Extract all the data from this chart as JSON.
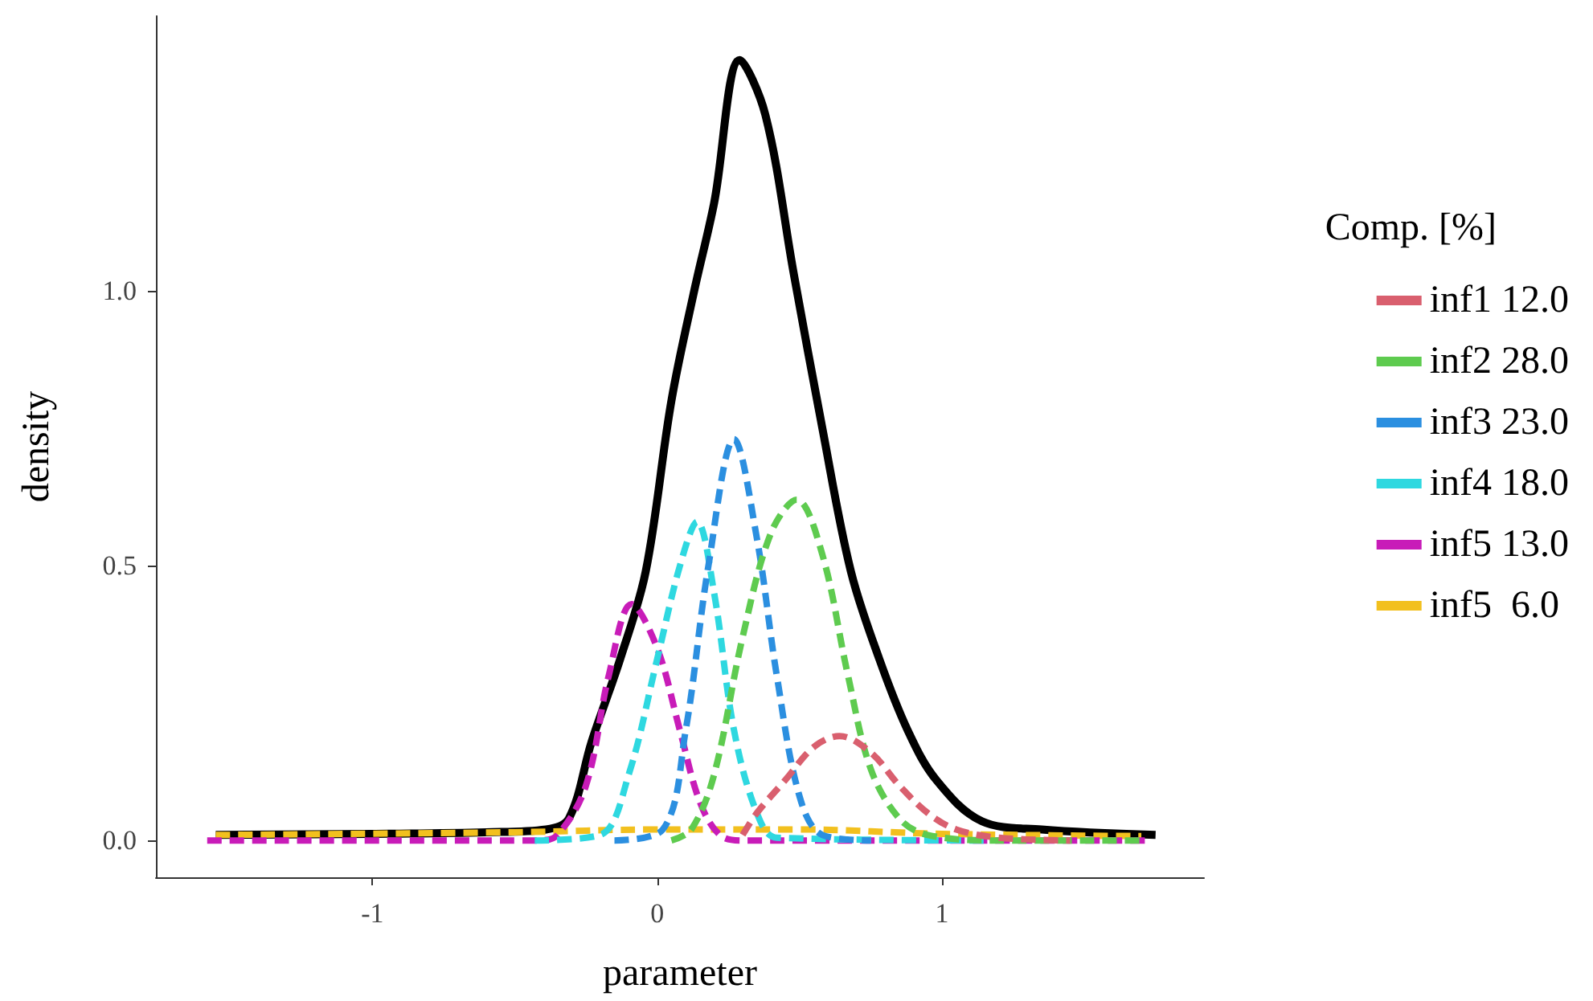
{
  "chart_data": {
    "type": "line",
    "xlabel": "parameter",
    "ylabel": "density",
    "legend_title": "Comp. [%]",
    "xlim": [
      -1.76,
      1.92
    ],
    "ylim": [
      -0.067,
      1.5
    ],
    "xticks": [
      -1,
      0,
      1
    ],
    "yticks": [
      {
        "value": 0,
        "label": "0.0"
      },
      0.5,
      {
        "value": 1,
        "label": "1.0"
      }
    ],
    "grid": false,
    "legend": "right",
    "marker": "none",
    "series": [
      {
        "color": "#000000",
        "line_style": "solid",
        "x": [
          -1.55,
          -1.0,
          -0.6,
          -0.39,
          -0.31,
          -0.23,
          -0.13,
          -0.04,
          0.05,
          0.13,
          0.2,
          0.29,
          0.38,
          0.48,
          0.58,
          0.68,
          0.78,
          0.88,
          0.98,
          1.14,
          1.35,
          1.75
        ],
        "values": [
          0.01,
          0.012,
          0.015,
          0.02,
          0.04,
          0.18,
          0.33,
          0.49,
          0.8,
          1.0,
          1.16,
          1.42,
          1.32,
          1.03,
          0.75,
          0.49,
          0.33,
          0.2,
          0.11,
          0.035,
          0.02,
          0.01
        ]
      },
      {
        "name": "inf1 12.0",
        "color": "#d95f6e",
        "line_style": "dashed",
        "x": [
          0.3,
          0.35,
          0.45,
          0.55,
          0.64,
          0.75,
          0.85,
          0.95,
          1.05,
          1.2,
          1.45
        ],
        "values": [
          0.01,
          0.05,
          0.11,
          0.17,
          0.19,
          0.16,
          0.1,
          0.05,
          0.02,
          0.005,
          0
        ]
      },
      {
        "name": "inf2 28.0",
        "color": "#5ecb4f",
        "line_style": "dashed",
        "x": [
          0.05,
          0.12,
          0.2,
          0.3,
          0.4,
          0.49,
          0.58,
          0.67,
          0.75,
          0.85,
          0.95,
          1.2,
          1.7
        ],
        "values": [
          0,
          0.02,
          0.12,
          0.37,
          0.56,
          0.62,
          0.52,
          0.3,
          0.13,
          0.04,
          0.01,
          0,
          0
        ]
      },
      {
        "name": "inf3 23.0",
        "color": "#2b8fe0",
        "line_style": "dashed",
        "x": [
          -0.15,
          0.02,
          0.1,
          0.18,
          0.27,
          0.35,
          0.42,
          0.5,
          0.58,
          0.75
        ],
        "values": [
          0,
          0.02,
          0.2,
          0.5,
          0.73,
          0.55,
          0.3,
          0.08,
          0.01,
          0
        ]
      },
      {
        "name": "inf4 18.0",
        "color": "#2ed8e0",
        "line_style": "dashed",
        "x": [
          -0.43,
          -0.2,
          -0.1,
          0.0,
          0.08,
          0.14,
          0.2,
          0.27,
          0.35,
          0.42,
          1.15
        ],
        "values": [
          0,
          0.01,
          0.12,
          0.33,
          0.5,
          0.58,
          0.45,
          0.2,
          0.05,
          0.005,
          0
        ]
      },
      {
        "name": "inf5 13.0",
        "color": "#c81cb8",
        "line_style": "dashed",
        "x": [
          -1.58,
          -0.42,
          -0.35,
          -0.25,
          -0.17,
          -0.09,
          0.0,
          0.08,
          0.15,
          0.22,
          0.3,
          1.72
        ],
        "values": [
          0,
          0,
          0.01,
          0.1,
          0.3,
          0.43,
          0.35,
          0.2,
          0.07,
          0.01,
          0,
          0
        ]
      },
      {
        "name": "inf5  6.0",
        "color": "#f2c01e",
        "line_style": "dashed",
        "x": [
          -1.55,
          -0.5,
          0.0,
          0.5,
          1.0,
          1.7
        ],
        "values": [
          0.01,
          0.015,
          0.02,
          0.02,
          0.012,
          0.008
        ]
      }
    ]
  }
}
